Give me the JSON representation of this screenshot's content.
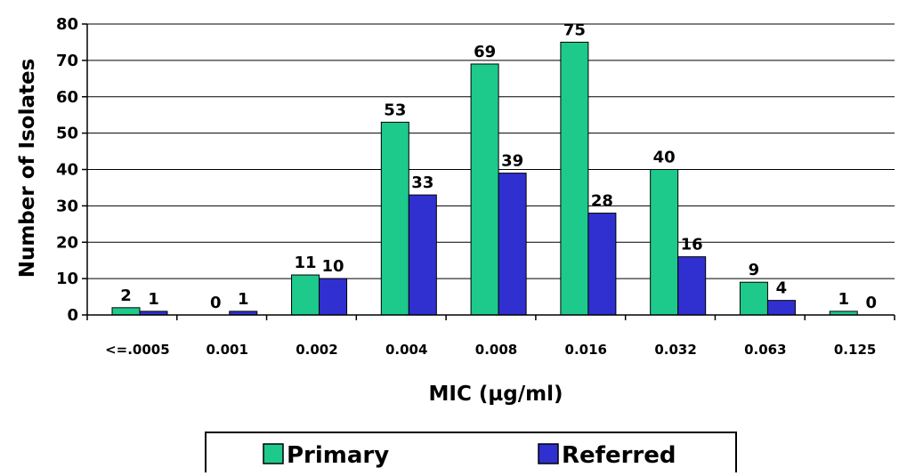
{
  "chart_data": {
    "type": "bar",
    "title": "",
    "xlabel": "MIC (µg/ml)",
    "ylabel": "Number of Isolates",
    "categories": [
      "<=.0005",
      "0.001",
      "0.002",
      "0.004",
      "0.008",
      "0.016",
      "0.032",
      "0.063",
      "0.125"
    ],
    "series": [
      {
        "name": "Primary",
        "values": [
          2,
          0,
          11,
          53,
          69,
          75,
          40,
          9,
          1
        ],
        "color": "#1ec98c"
      },
      {
        "name": "Referred",
        "values": [
          1,
          1,
          10,
          33,
          39,
          28,
          16,
          4,
          0
        ],
        "color": "#3030d0"
      }
    ],
    "ylim": [
      0,
      80
    ],
    "yticks": [
      "0",
      "10",
      "20",
      "30",
      "40",
      "50",
      "60",
      "70",
      "80"
    ],
    "data_labels": [
      [
        "2",
        "0",
        "11",
        "53",
        "69",
        "75",
        "40",
        "9",
        "1"
      ],
      [
        "1",
        "1",
        "10",
        "33",
        "39",
        "28",
        "16",
        "4",
        "0"
      ]
    ],
    "grid": true,
    "legend_position": "bottom"
  }
}
